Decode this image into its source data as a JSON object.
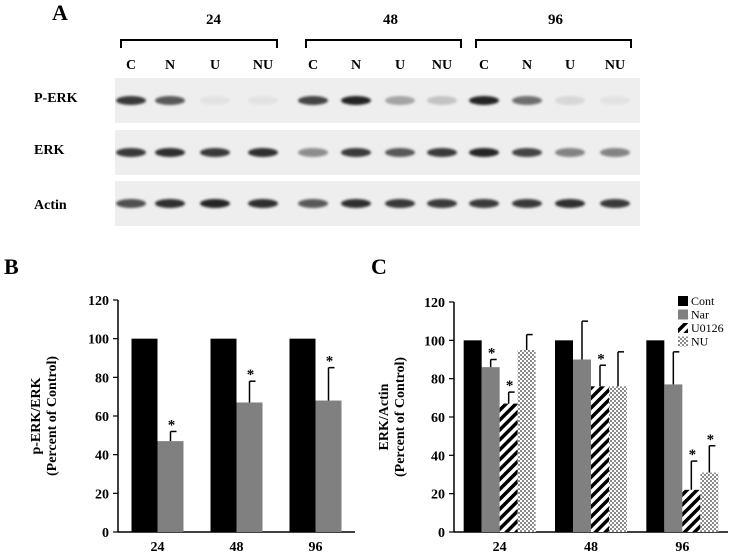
{
  "panels": {
    "a": "A",
    "b": "B",
    "c": "C"
  },
  "blot": {
    "timepoints": [
      "24",
      "48",
      "96"
    ],
    "lanes": [
      "C",
      "N",
      "U",
      "NU",
      "C",
      "N",
      "U",
      "NU",
      "C",
      "N",
      "U",
      "NU"
    ],
    "rows": [
      {
        "label": "P-ERK",
        "intensity": [
          0.85,
          0.7,
          0.05,
          0.05,
          0.8,
          0.95,
          0.35,
          0.2,
          0.95,
          0.6,
          0.1,
          0.05
        ]
      },
      {
        "label": "ERK",
        "intensity": [
          0.85,
          0.9,
          0.85,
          0.9,
          0.45,
          0.85,
          0.7,
          0.85,
          0.95,
          0.8,
          0.5,
          0.5
        ]
      },
      {
        "label": "Actin",
        "intensity": [
          0.75,
          0.9,
          0.95,
          0.9,
          0.7,
          0.9,
          0.85,
          0.85,
          0.85,
          0.85,
          0.9,
          0.85
        ]
      }
    ]
  },
  "chart_data": [
    {
      "type": "bar",
      "panel": "B",
      "categories": [
        "24",
        "48",
        "96"
      ],
      "series": [
        {
          "values": [
            100,
            100,
            100
          ],
          "errors": [
            0,
            0,
            0
          ],
          "significant": [
            false,
            false,
            false
          ],
          "color": "#000000"
        },
        {
          "values": [
            47,
            67,
            68
          ],
          "errors": [
            5,
            11,
            17
          ],
          "significant": [
            true,
            true,
            true
          ],
          "color": "#808080"
        }
      ],
      "ylabel": "p-ERK/ERK",
      "ylabel2": "(Percent of Control)",
      "ylim": [
        0,
        120
      ],
      "yticks": [
        "0",
        "20",
        "40",
        "60",
        "80",
        "100",
        "120"
      ],
      "grid": false,
      "marker": "*"
    },
    {
      "type": "bar",
      "panel": "C",
      "categories": [
        "24",
        "48",
        "96"
      ],
      "series": [
        {
          "name": "Cont",
          "values": [
            100,
            100,
            100
          ],
          "errors": [
            0,
            0,
            0
          ],
          "significant": [
            false,
            false,
            false
          ],
          "color": "#000000",
          "pattern": "solid"
        },
        {
          "name": "Nar",
          "values": [
            86,
            90,
            77
          ],
          "errors": [
            4,
            20,
            17
          ],
          "significant": [
            true,
            false,
            false
          ],
          "color": "#808080",
          "pattern": "solid"
        },
        {
          "name": "U0126",
          "values": [
            67,
            76,
            22
          ],
          "errors": [
            6,
            11,
            15
          ],
          "significant": [
            true,
            true,
            true
          ],
          "color": "#000000",
          "pattern": "diagonal"
        },
        {
          "name": "NU",
          "values": [
            95,
            76,
            31
          ],
          "errors": [
            8,
            18,
            14
          ],
          "significant": [
            false,
            false,
            true
          ],
          "color": "#9a9a9a",
          "pattern": "checker"
        }
      ],
      "ylabel": "ERK/Actin",
      "ylabel2": "(Percent of Control)",
      "ylim": [
        0,
        120
      ],
      "yticks": [
        "0",
        "20",
        "40",
        "60",
        "80",
        "100",
        "120"
      ],
      "grid": false,
      "legend_position": "top-right",
      "marker": "*"
    }
  ]
}
